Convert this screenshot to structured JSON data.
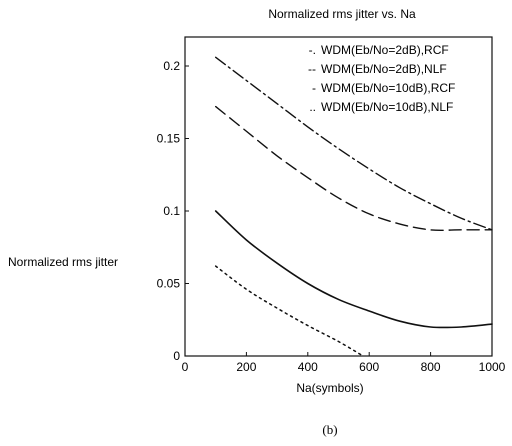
{
  "chart_data": {
    "type": "line",
    "title": "Normalized rms jitter vs. Na",
    "xlabel": "Na(symbols)",
    "ylabel": "Normalized rms jitter",
    "xlim": [
      0,
      1000
    ],
    "ylim": [
      0,
      0.22
    ],
    "xticks": [
      0,
      200,
      400,
      600,
      800,
      1000
    ],
    "xtick_labels": [
      "0",
      "200",
      "400",
      "600",
      "800",
      "1000"
    ],
    "yticks": [
      0,
      0.05,
      0.1,
      0.15,
      0.2
    ],
    "ytick_labels": [
      "0",
      "0.05",
      "0.1",
      "0.15",
      "0.2"
    ],
    "grid": false,
    "legend_position": "top-right",
    "series": [
      {
        "name": "WDM(Eb/No=2dB),RCF",
        "legend_marker": "-.",
        "line_style": "dashdot",
        "x": [
          100,
          200,
          300,
          400,
          500,
          600,
          700,
          800,
          900,
          1000
        ],
        "y": [
          0.206,
          0.19,
          0.174,
          0.158,
          0.143,
          0.129,
          0.116,
          0.105,
          0.095,
          0.087
        ]
      },
      {
        "name": "WDM(Eb/No=2dB),NLF",
        "legend_marker": "--",
        "line_style": "dashed",
        "x": [
          100,
          200,
          300,
          400,
          500,
          600,
          700,
          800,
          900,
          1000
        ],
        "y": [
          0.172,
          0.155,
          0.138,
          0.123,
          0.109,
          0.098,
          0.091,
          0.087,
          0.087,
          0.087
        ]
      },
      {
        "name": "WDM(Eb/No=10dB),RCF",
        "legend_marker": "-",
        "line_style": "solid",
        "x": [
          100,
          200,
          300,
          400,
          500,
          600,
          700,
          800,
          900,
          1000
        ],
        "y": [
          0.1,
          0.08,
          0.064,
          0.05,
          0.039,
          0.031,
          0.024,
          0.02,
          0.02,
          0.022
        ]
      },
      {
        "name": "WDM(Eb/No=10dB),NLF",
        "legend_marker": "..",
        "line_style": "dotted",
        "x": [
          100,
          200,
          300,
          400,
          500,
          580
        ],
        "y": [
          0.062,
          0.046,
          0.033,
          0.021,
          0.01,
          0.0
        ]
      }
    ],
    "caption": "(b)"
  }
}
